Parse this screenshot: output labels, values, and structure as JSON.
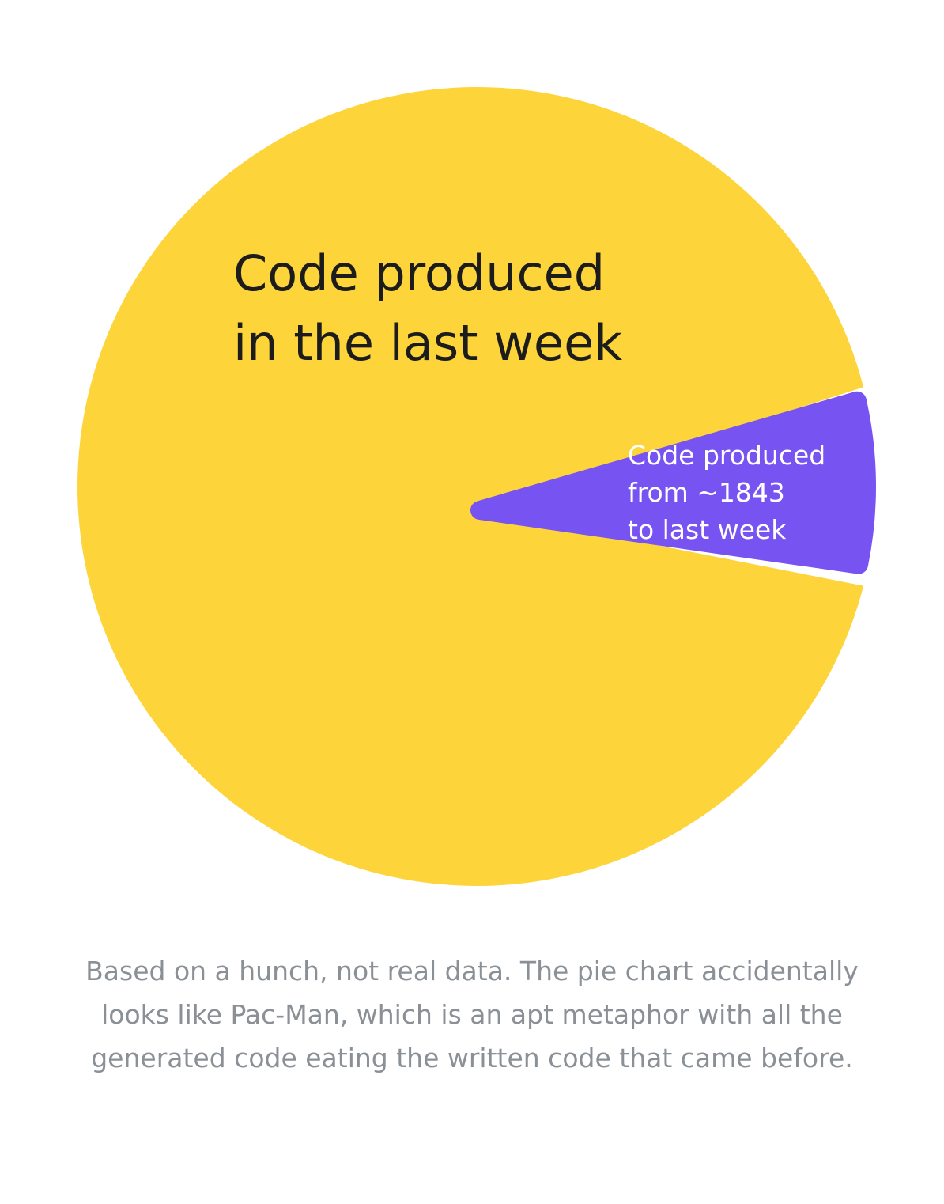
{
  "chart_data": {
    "type": "pie",
    "slices": [
      {
        "label_lines": [
          "Code produced",
          "in the last week"
        ],
        "share": 0.92,
        "color": "#fdd43a"
      },
      {
        "label_lines": [
          "Code produced",
          "from ~1843",
          "to last week"
        ],
        "share": 0.08,
        "color": "#7753f1"
      }
    ]
  },
  "caption_lines": [
    "Based on a hunch, not real data. The pie chart accidentally",
    "looks like Pac-Man, which is an apt metaphor with all the",
    "generated code eating the written code that came before."
  ],
  "colors": {
    "background": "#ffffff",
    "caption": "#8b9096",
    "big_label": "#1c1c1c",
    "small_label": "#ffffff"
  }
}
